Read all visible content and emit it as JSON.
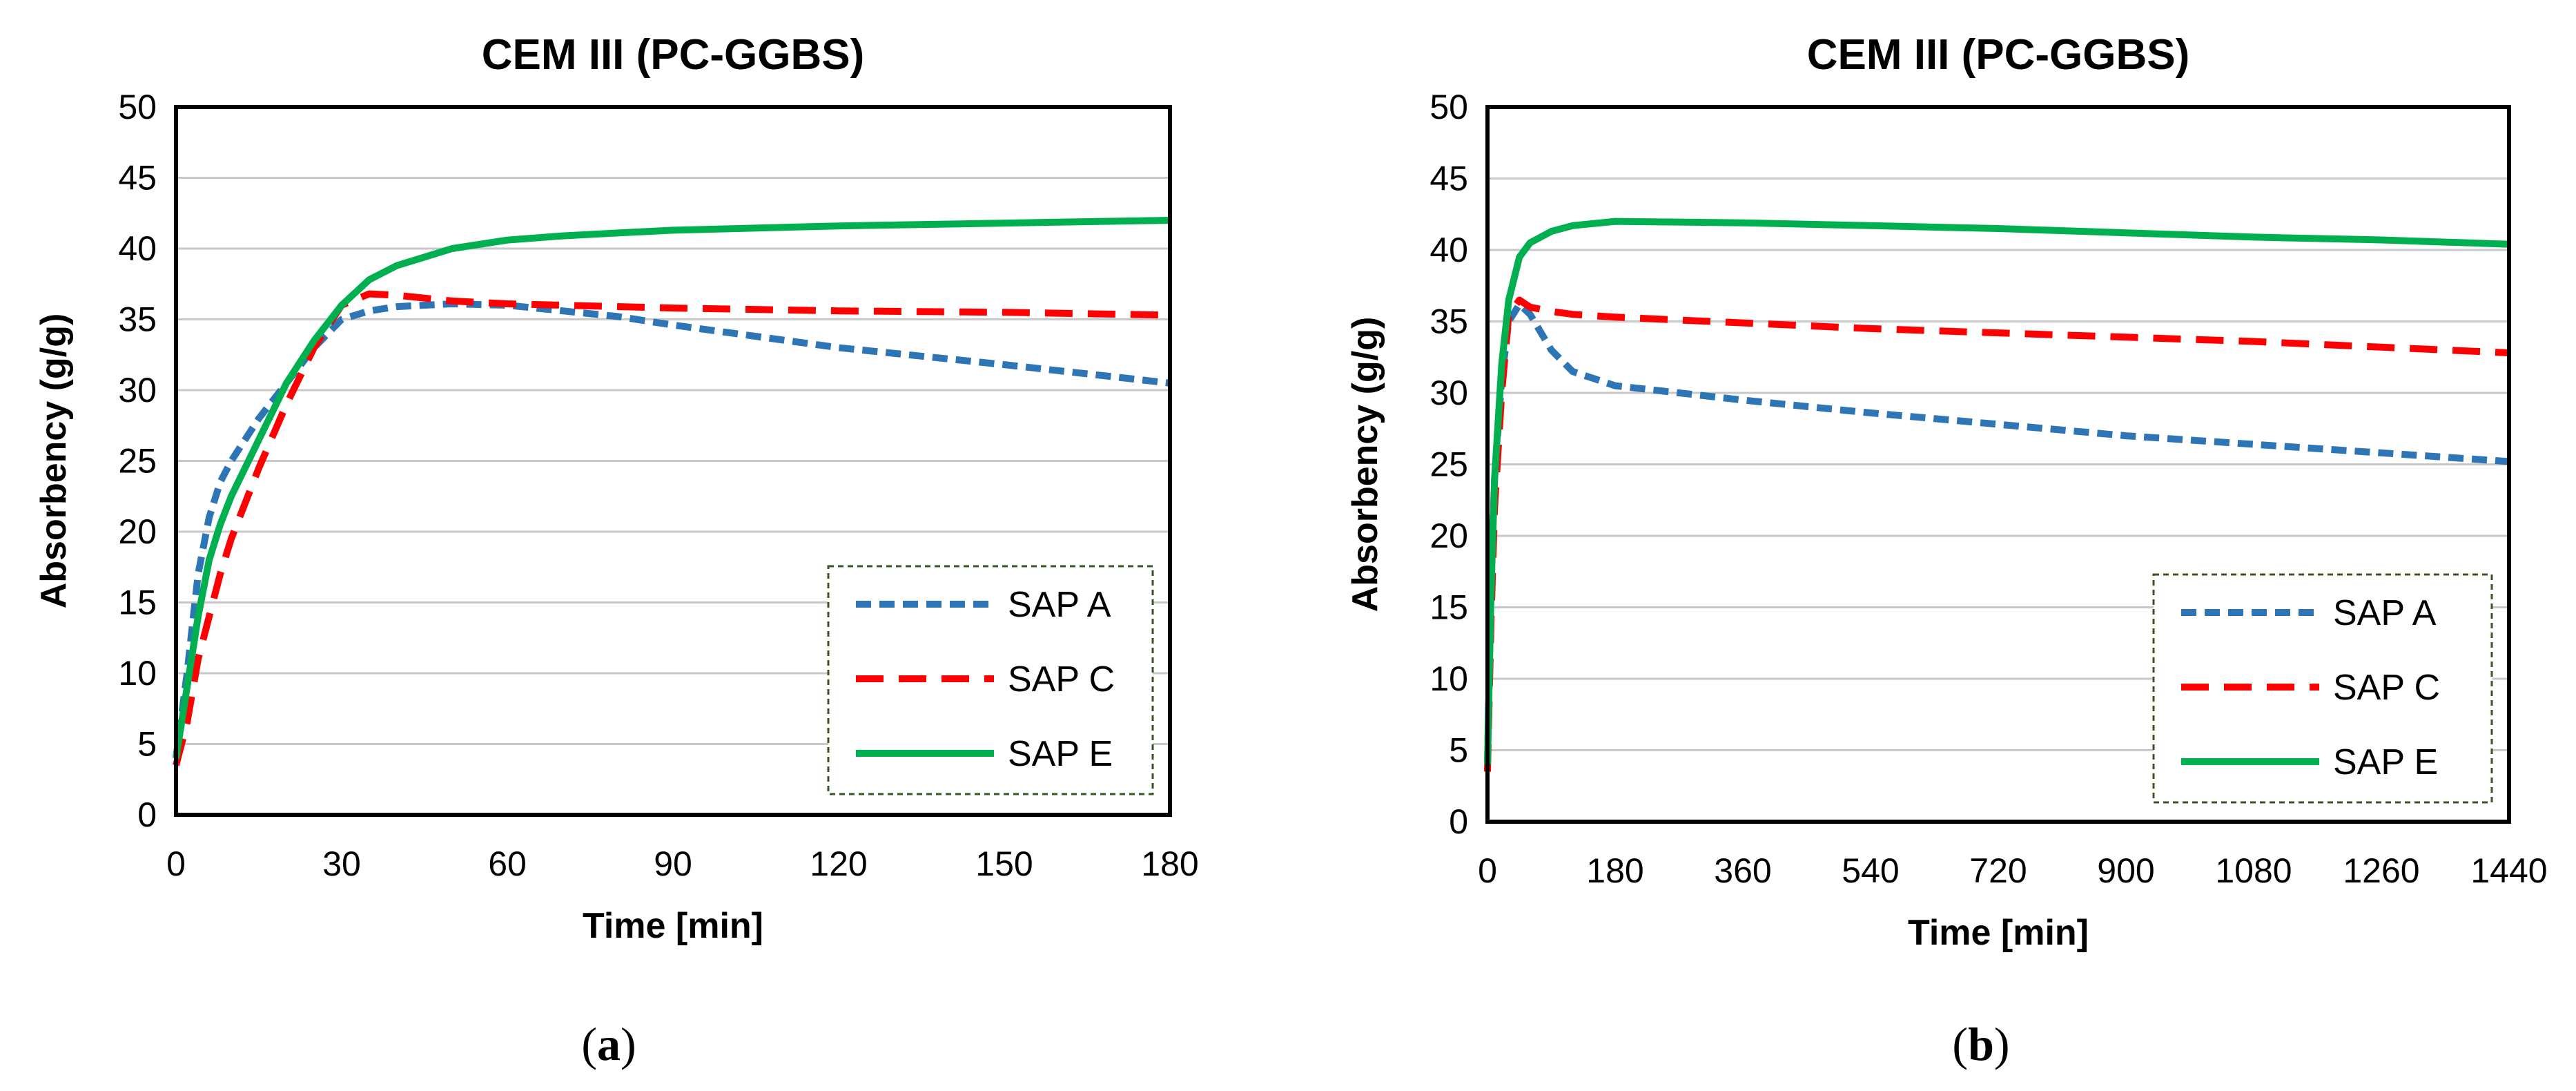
{
  "chart_data": [
    {
      "type": "line",
      "title": "CEM III (PC-GGBS)",
      "xlabel": "Time [min]",
      "ylabel": "Absorbency (g/g)",
      "xlim": [
        0,
        180
      ],
      "ylim": [
        0,
        50
      ],
      "xticks": [
        0,
        30,
        60,
        90,
        120,
        150,
        180
      ],
      "xtick_labels": [
        "0",
        "30",
        "60",
        "90",
        "120",
        "150",
        "180"
      ],
      "yticks": [
        0,
        5,
        10,
        15,
        20,
        25,
        30,
        35,
        40,
        45,
        50
      ],
      "ytick_labels": [
        "0",
        "5",
        "10",
        "15",
        "20",
        "25",
        "30",
        "35",
        "40",
        "45",
        "50"
      ],
      "grid": "horizontal",
      "legend_position": "bottom-right",
      "caption_open": "(",
      "caption_letter": "a",
      "caption_close": ")",
      "series": [
        {
          "name": "SAP A",
          "color": "#2E75B6",
          "dash": "dotted",
          "x": [
            0,
            2,
            4,
            6,
            8,
            10,
            15,
            20,
            25,
            30,
            35,
            40,
            50,
            60,
            70,
            80,
            90,
            120,
            150,
            180
          ],
          "y": [
            4,
            10,
            17,
            21,
            23.5,
            25,
            28,
            30.5,
            33,
            35,
            35.6,
            35.9,
            36.1,
            36,
            35.6,
            35.2,
            34.6,
            33,
            31.8,
            30.5
          ]
        },
        {
          "name": "SAP C",
          "color": "#FF0000",
          "dash": "dashed",
          "x": [
            0,
            2,
            4,
            6,
            8,
            10,
            15,
            20,
            25,
            30,
            35,
            40,
            50,
            60,
            90,
            120,
            150,
            180
          ],
          "y": [
            3.5,
            6.5,
            11,
            14,
            17,
            19.5,
            24.5,
            29,
            33,
            36,
            36.8,
            36.7,
            36.3,
            36.1,
            35.8,
            35.6,
            35.5,
            35.3
          ]
        },
        {
          "name": "SAP E",
          "color": "#00B050",
          "dash": "solid",
          "x": [
            0,
            2,
            4,
            6,
            8,
            10,
            15,
            20,
            25,
            30,
            35,
            40,
            50,
            60,
            70,
            80,
            90,
            120,
            150,
            180
          ],
          "y": [
            4,
            9,
            14,
            18,
            20.5,
            22.5,
            26.5,
            30.5,
            33.5,
            36,
            37.8,
            38.8,
            40,
            40.6,
            40.9,
            41.1,
            41.3,
            41.6,
            41.8,
            42
          ]
        }
      ]
    },
    {
      "type": "line",
      "title": "CEM III (PC-GGBS)",
      "xlabel": "Time [min]",
      "ylabel": "Absorbency (g/g)",
      "xlim": [
        0,
        1440
      ],
      "ylim": [
        0,
        50
      ],
      "xticks": [
        0,
        180,
        360,
        540,
        720,
        900,
        1080,
        1260,
        1440
      ],
      "xtick_labels": [
        "0",
        "180",
        "360",
        "540",
        "720",
        "900",
        "1080",
        "1260",
        "1440"
      ],
      "yticks": [
        0,
        5,
        10,
        15,
        20,
        25,
        30,
        35,
        40,
        45,
        50
      ],
      "ytick_labels": [
        "0",
        "5",
        "10",
        "15",
        "20",
        "25",
        "30",
        "35",
        "40",
        "45",
        "50"
      ],
      "grid": "horizontal",
      "legend_position": "bottom-right",
      "caption_open": "(",
      "caption_letter": "b",
      "caption_close": ")",
      "series": [
        {
          "name": "SAP A",
          "color": "#2E75B6",
          "dash": "dotted",
          "x": [
            0,
            5,
            10,
            20,
            30,
            45,
            60,
            90,
            120,
            180,
            360,
            540,
            720,
            900,
            1080,
            1260,
            1440
          ],
          "y": [
            4,
            17,
            24,
            31,
            35,
            36.2,
            35.5,
            33,
            31.5,
            30.5,
            29.5,
            28.6,
            27.8,
            27,
            26.4,
            25.8,
            25.2
          ]
        },
        {
          "name": "SAP C",
          "color": "#FF0000",
          "dash": "dashed",
          "x": [
            0,
            5,
            10,
            20,
            30,
            45,
            60,
            90,
            120,
            180,
            360,
            540,
            720,
            900,
            1080,
            1260,
            1440
          ],
          "y": [
            3.5,
            14,
            22,
            30,
            35.5,
            36.5,
            36,
            35.7,
            35.5,
            35.3,
            34.9,
            34.5,
            34.2,
            33.9,
            33.6,
            33.2,
            32.8
          ]
        },
        {
          "name": "SAP E",
          "color": "#00B050",
          "dash": "solid",
          "x": [
            0,
            5,
            10,
            20,
            30,
            45,
            60,
            90,
            120,
            180,
            360,
            540,
            720,
            900,
            1080,
            1260,
            1440
          ],
          "y": [
            4,
            16,
            24,
            32,
            36.5,
            39.5,
            40.5,
            41.3,
            41.7,
            42,
            41.9,
            41.7,
            41.5,
            41.2,
            40.9,
            40.7,
            40.4
          ]
        }
      ]
    }
  ]
}
